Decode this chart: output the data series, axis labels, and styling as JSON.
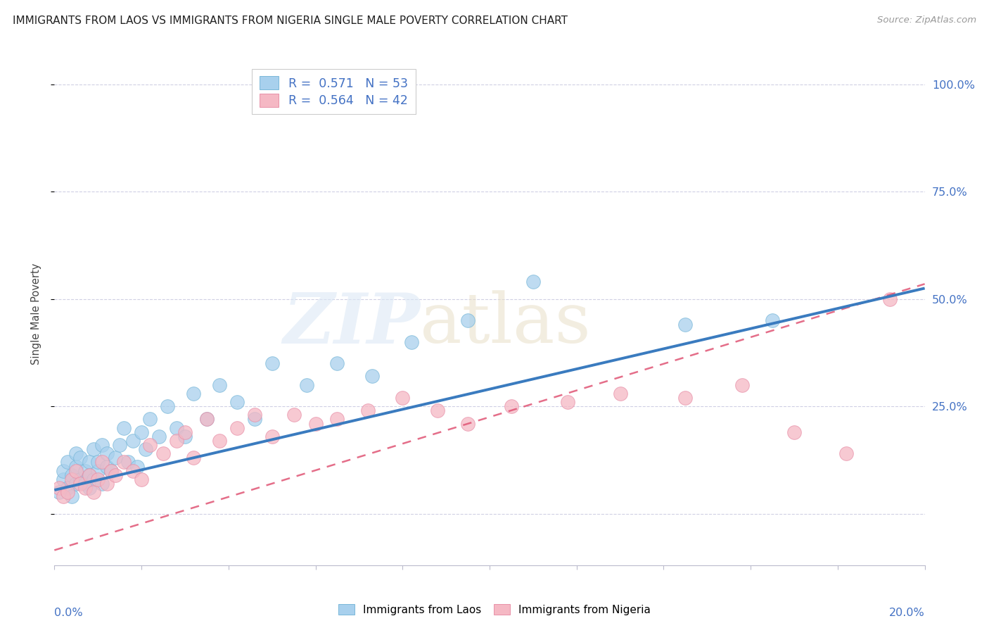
{
  "title": "IMMIGRANTS FROM LAOS VS IMMIGRANTS FROM NIGERIA SINGLE MALE POVERTY CORRELATION CHART",
  "source": "Source: ZipAtlas.com",
  "ylabel": "Single Male Poverty",
  "yticks": [
    0.0,
    0.25,
    0.5,
    0.75,
    1.0
  ],
  "ytick_labels": [
    "",
    "25.0%",
    "50.0%",
    "75.0%",
    "100.0%"
  ],
  "xmin": 0.0,
  "xmax": 0.2,
  "ymin": -0.12,
  "ymax": 1.05,
  "laos_R": 0.571,
  "laos_N": 53,
  "nigeria_R": 0.564,
  "nigeria_N": 42,
  "laos_scatter_color": "#a8d0ed",
  "nigeria_scatter_color": "#f5b8c4",
  "laos_line_color": "#3a7bbf",
  "nigeria_line_color": "#e05575",
  "background_color": "#ffffff",
  "grid_color": "#c8c8e0",
  "laos_x": [
    0.001,
    0.002,
    0.002,
    0.003,
    0.003,
    0.004,
    0.004,
    0.005,
    0.005,
    0.005,
    0.006,
    0.006,
    0.007,
    0.007,
    0.008,
    0.008,
    0.008,
    0.009,
    0.009,
    0.01,
    0.01,
    0.011,
    0.011,
    0.012,
    0.012,
    0.013,
    0.014,
    0.015,
    0.016,
    0.017,
    0.018,
    0.019,
    0.02,
    0.021,
    0.022,
    0.024,
    0.026,
    0.028,
    0.03,
    0.032,
    0.035,
    0.038,
    0.042,
    0.046,
    0.05,
    0.058,
    0.065,
    0.073,
    0.082,
    0.095,
    0.11,
    0.145,
    0.165
  ],
  "laos_y": [
    0.05,
    0.08,
    0.1,
    0.06,
    0.12,
    0.09,
    0.04,
    0.07,
    0.11,
    0.14,
    0.08,
    0.13,
    0.07,
    0.1,
    0.06,
    0.12,
    0.09,
    0.08,
    0.15,
    0.1,
    0.12,
    0.16,
    0.07,
    0.11,
    0.14,
    0.1,
    0.13,
    0.16,
    0.2,
    0.12,
    0.17,
    0.11,
    0.19,
    0.15,
    0.22,
    0.18,
    0.25,
    0.2,
    0.18,
    0.28,
    0.22,
    0.3,
    0.26,
    0.22,
    0.35,
    0.3,
    0.35,
    0.32,
    0.4,
    0.45,
    0.54,
    0.44,
    0.45
  ],
  "nigeria_x": [
    0.001,
    0.002,
    0.003,
    0.004,
    0.005,
    0.006,
    0.007,
    0.008,
    0.009,
    0.01,
    0.011,
    0.012,
    0.013,
    0.014,
    0.016,
    0.018,
    0.02,
    0.022,
    0.025,
    0.028,
    0.03,
    0.032,
    0.035,
    0.038,
    0.042,
    0.046,
    0.05,
    0.055,
    0.06,
    0.065,
    0.072,
    0.08,
    0.088,
    0.095,
    0.105,
    0.118,
    0.13,
    0.145,
    0.158,
    0.17,
    0.182,
    0.192
  ],
  "nigeria_y": [
    0.06,
    0.04,
    0.05,
    0.08,
    0.1,
    0.07,
    0.06,
    0.09,
    0.05,
    0.08,
    0.12,
    0.07,
    0.1,
    0.09,
    0.12,
    0.1,
    0.08,
    0.16,
    0.14,
    0.17,
    0.19,
    0.13,
    0.22,
    0.17,
    0.2,
    0.23,
    0.18,
    0.23,
    0.21,
    0.22,
    0.24,
    0.27,
    0.24,
    0.21,
    0.25,
    0.26,
    0.28,
    0.27,
    0.3,
    0.19,
    0.14,
    0.5
  ],
  "laos_line_intercept": 0.055,
  "laos_line_slope": 2.35,
  "nigeria_line_intercept": -0.085,
  "nigeria_line_slope": 3.1
}
